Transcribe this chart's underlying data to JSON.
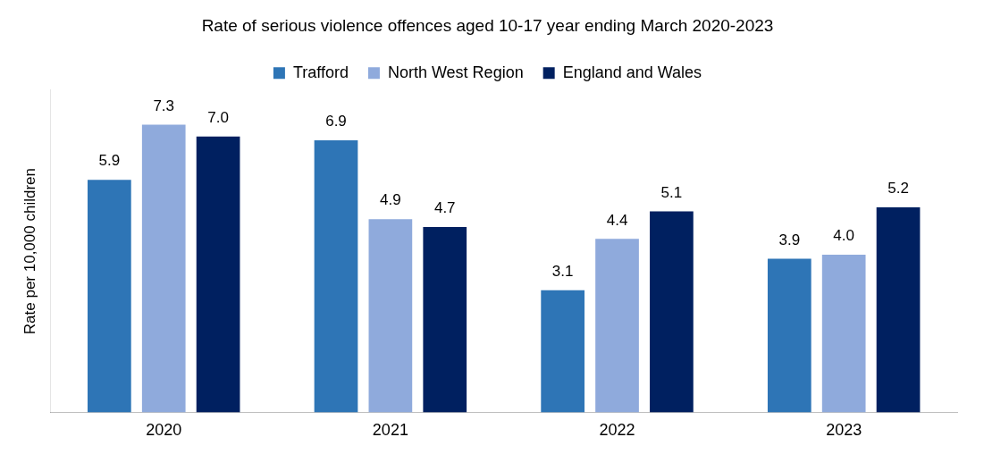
{
  "chart_data": {
    "type": "bar",
    "title": "Rate of serious violence offences aged 10-17 year ending March 2020-2023",
    "ylabel": "Rate per 10,000 children",
    "categories": [
      "2020",
      "2021",
      "2022",
      "2023"
    ],
    "relative": false,
    "legend": "top",
    "grid": false,
    "series": [
      {
        "name": "Trafford",
        "color": "#2e75b6",
        "values": [
          5.9,
          6.9,
          3.1,
          3.9
        ],
        "value_labels": [
          "5.9",
          "6.9",
          "3.1",
          "3.9"
        ]
      },
      {
        "name": "North West Region",
        "color": "#8faadc",
        "values": [
          7.3,
          4.9,
          4.4,
          4.0
        ],
        "value_labels": [
          "7.3",
          "4.9",
          "4.4",
          "4.0"
        ]
      },
      {
        "name": "England and Wales",
        "color": "#002060",
        "values": [
          7.0,
          4.7,
          5.1,
          5.2
        ],
        "value_labels": [
          "7.0",
          "4.7",
          "5.1",
          "5.2"
        ]
      }
    ]
  }
}
